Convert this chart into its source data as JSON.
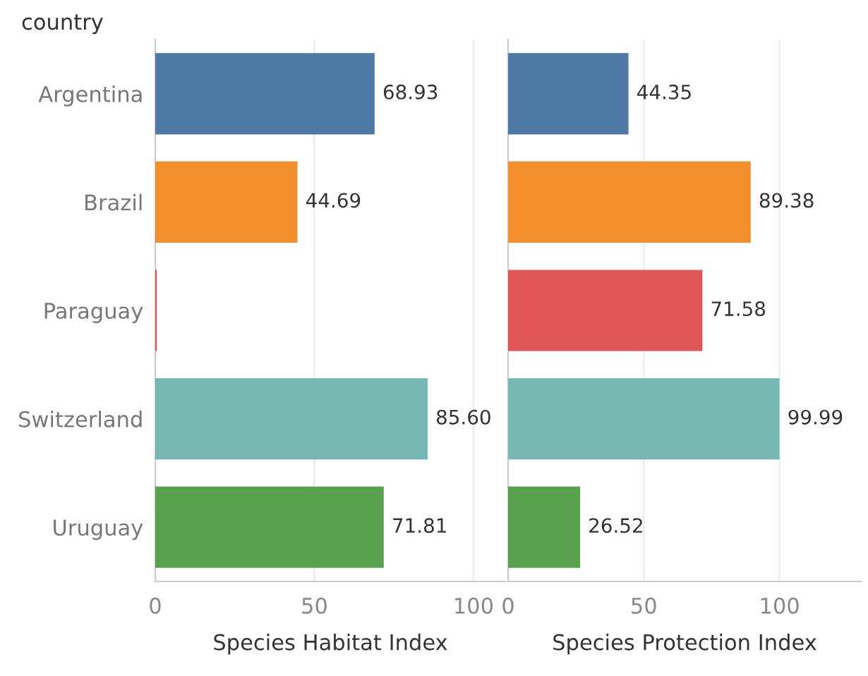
{
  "chart_data": [
    {
      "type": "bar",
      "orientation": "horizontal",
      "ylabel": "country",
      "xlabel": "Species Habitat Index",
      "categories": [
        "Argentina",
        "Brazil",
        "Paraguay",
        "Switzerland",
        "Uruguay"
      ],
      "values": [
        68.93,
        44.69,
        0.5,
        85.6,
        71.81
      ],
      "value_labels": [
        "68.93",
        "44.69",
        null,
        "85.60",
        "71.81"
      ],
      "colors": [
        "#4e79a7",
        "#f28e2b",
        "#e15759",
        "#76b7b2",
        "#59a14f"
      ],
      "xlim": [
        0,
        110
      ],
      "xticks": [
        0,
        50,
        100
      ],
      "grid": "x"
    },
    {
      "type": "bar",
      "orientation": "horizontal",
      "xlabel": "Species Protection Index",
      "categories": [
        null,
        null,
        null,
        null,
        null
      ],
      "values": [
        44.35,
        89.38,
        71.58,
        99.99,
        26.52
      ],
      "value_labels": [
        "44.35",
        "89.38",
        "71.58",
        "99.99",
        "26.52"
      ],
      "colors": [
        "#4e79a7",
        "#f28e2b",
        "#e15759",
        "#76b7b2",
        "#59a14f"
      ],
      "xlim": [
        0,
        130
      ],
      "xticks": [
        0,
        50,
        100
      ],
      "grid": "x",
      "tick_labels": "x"
    }
  ]
}
